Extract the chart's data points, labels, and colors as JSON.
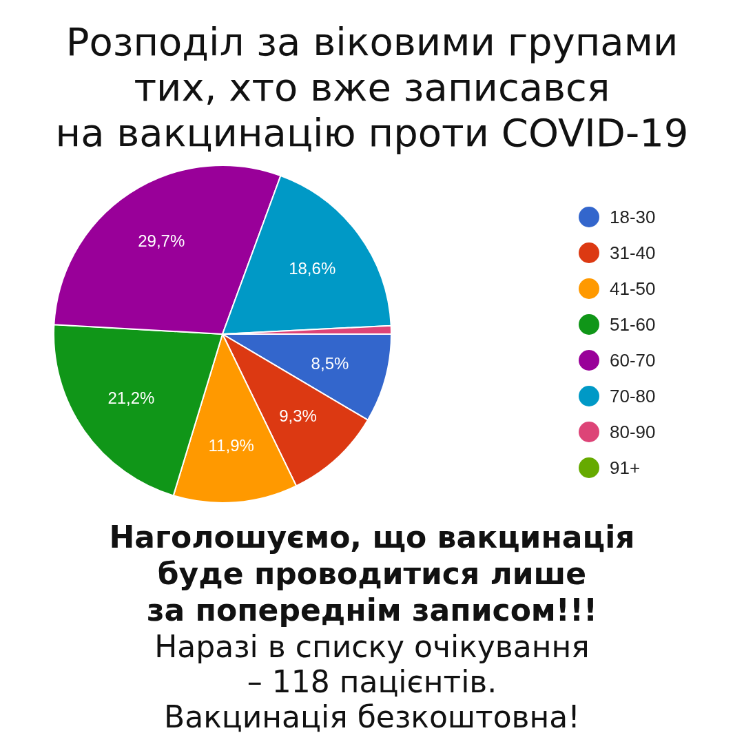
{
  "chart_data": {
    "type": "pie",
    "title": "Розподіл за віковими групами\nтих, хто вже записався\nна вакцинацію проти COVID-19",
    "categories": [
      "18-30",
      "31-40",
      "41-50",
      "51-60",
      "60-70",
      "70-80",
      "80-90",
      "91+"
    ],
    "values": [
      8.5,
      9.3,
      11.9,
      21.2,
      29.7,
      18.6,
      0.8,
      0
    ],
    "colors": [
      "#3366cc",
      "#dc3912",
      "#ff9900",
      "#109618",
      "#990099",
      "#0099c6",
      "#dd4477",
      "#66aa00"
    ],
    "value_labels": [
      "8,5%",
      "9,3%",
      "11,9%",
      "21,2%",
      "29,7%",
      "18,6%",
      null,
      null
    ],
    "legend": "right",
    "annotations": [
      "Наголошуємо, що вакцинація\nбуде проводитися лише\nза попереднім записом!!!",
      "Наразі в списку очікування\n– 118 пацієнтів.\nВакцинація безкоштовна!"
    ]
  }
}
